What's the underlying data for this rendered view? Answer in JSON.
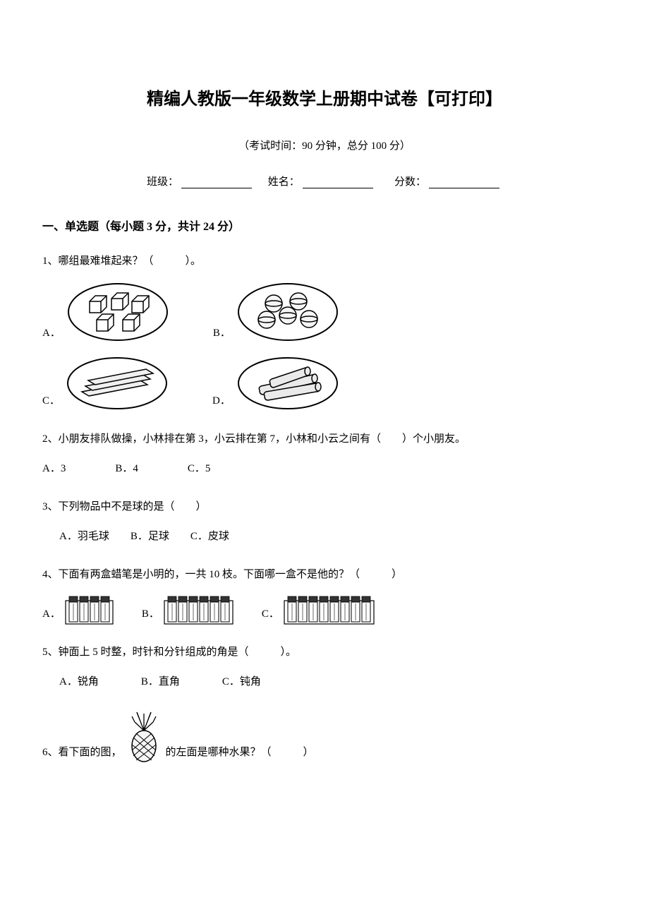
{
  "title": "精编人教版一年级数学上册期中试卷【可打印】",
  "exam_meta": "（考试时间：90 分钟，总分 100 分）",
  "blanks": {
    "class": "班级：",
    "name": "姓名：",
    "score": "分数："
  },
  "section1": {
    "header": "一、单选题（每小题 3 分，共计 24 分）"
  },
  "q1": {
    "text": "1、哪组最难堆起来？（　　　）。",
    "opts": {
      "A": "A．",
      "B": "B．",
      "C": "C．",
      "D": "D．"
    }
  },
  "q2": {
    "text": "2、小朋友排队做操，小林排在第 3，小云排在第 7，小林和小云之间有（　　）个小朋友。",
    "opts": {
      "A": "A．3",
      "B": "B．4",
      "C": "C．5"
    }
  },
  "q3": {
    "text": "3、下列物品中不是球的是（　　）",
    "opts": {
      "A": "A．羽毛球",
      "B": "B．足球",
      "C": "C．皮球"
    }
  },
  "q4": {
    "text": "4、下面有两盒蜡笔是小明的，一共 10 枝。下面哪一盒不是他的？（　　　）",
    "opts": {
      "A": "A．",
      "B": "B．",
      "C": "C．"
    },
    "counts": {
      "A": 4,
      "B": 6,
      "C": 8
    }
  },
  "q5": {
    "text": "5、钟面上 5 时整，时针和分针组成的角是（　　　）。",
    "opts": {
      "A": "A．锐角",
      "B": "B．直角",
      "C": "C．钝角"
    }
  },
  "q6": {
    "prefix": "6、看下面的图，",
    "suffix": "的左面是哪种水果？（　　　）"
  },
  "colors": {
    "text": "#000000",
    "bg": "#ffffff",
    "stroke": "#000000",
    "fill_light": "#f5f5f5",
    "fill_hatch": "#e0e0e0"
  },
  "svg": {
    "oval_plate": {
      "w": 150,
      "h": 90
    },
    "crayon_box": {
      "h": 44,
      "crayon_w": 12,
      "gap": 3
    },
    "pineapple": {
      "w": 50,
      "h": 76
    }
  }
}
